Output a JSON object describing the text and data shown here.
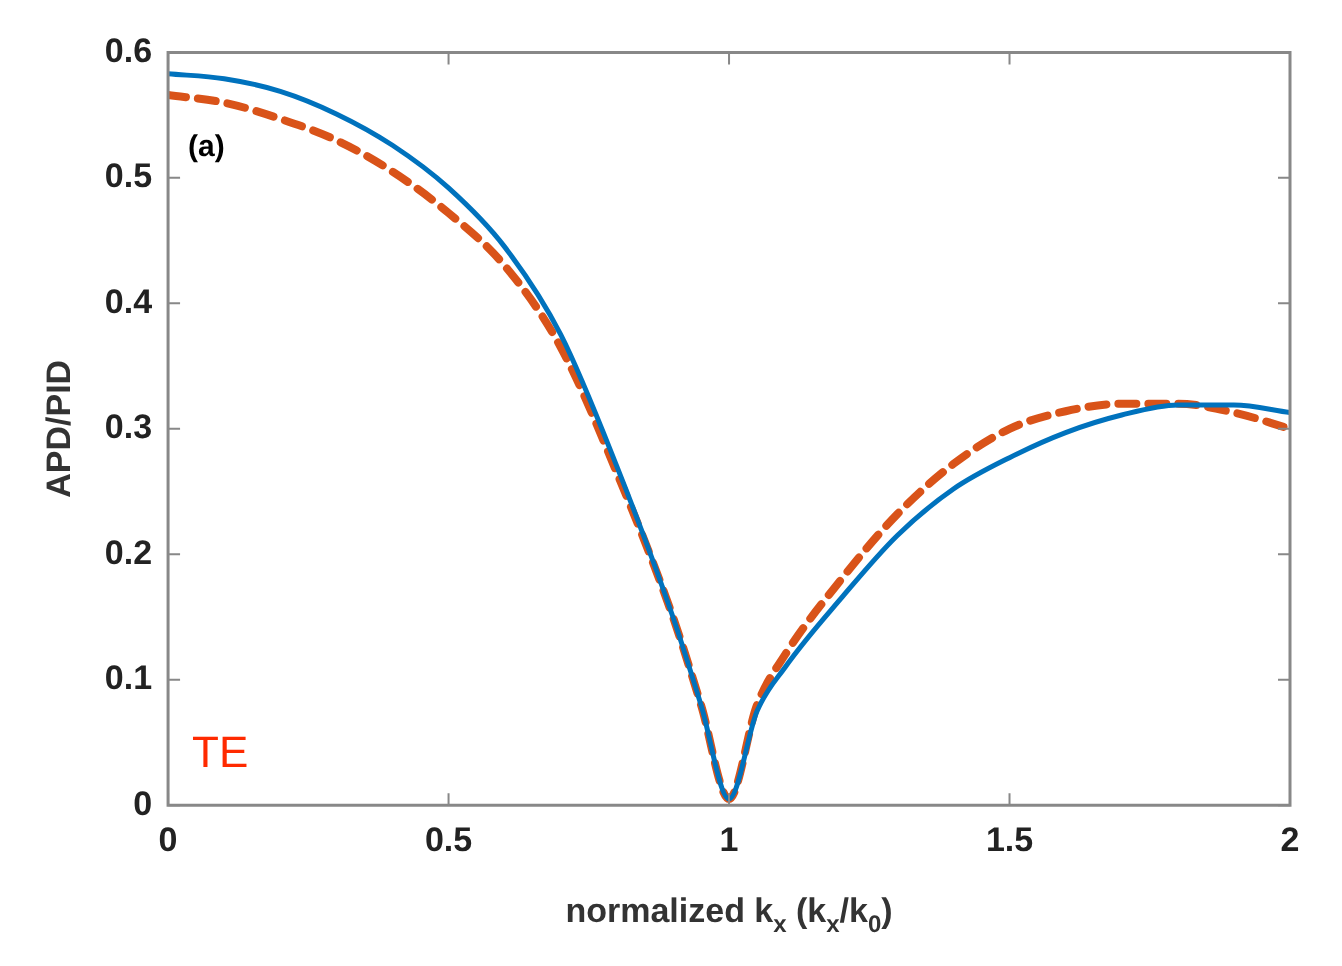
{
  "chart_data": {
    "type": "line",
    "xlabel": "normalized k$_{x}$ (k$_{x}$/k$_{0}$)",
    "ylabel": "APD/PID",
    "x": [
      0,
      0.1,
      0.2,
      0.3,
      0.4,
      0.5,
      0.6,
      0.7,
      0.8,
      0.9,
      0.95,
      1,
      1.05,
      1.1,
      1.2,
      1.3,
      1.4,
      1.5,
      1.6,
      1.7,
      1.8,
      1.9,
      2
    ],
    "series": [
      {
        "color": "#0072bd",
        "line_style": "solid",
        "values": [
          0.583,
          0.579,
          0.569,
          0.551,
          0.526,
          0.492,
          0.445,
          0.375,
          0.27,
          0.15,
          0.08,
          0.005,
          0.075,
          0.11,
          0.165,
          0.215,
          0.252,
          0.277,
          0.297,
          0.311,
          0.319,
          0.319,
          0.313
        ]
      },
      {
        "color": "#d95319",
        "line_style": "dashed",
        "values": [
          0.566,
          0.56,
          0.547,
          0.53,
          0.505,
          0.472,
          0.43,
          0.365,
          0.265,
          0.15,
          0.08,
          0.005,
          0.08,
          0.12,
          0.18,
          0.232,
          0.272,
          0.3,
          0.314,
          0.32,
          0.32,
          0.313,
          0.3
        ]
      }
    ],
    "xlim": [
      0,
      2
    ],
    "xticks": [
      0,
      0.5,
      1,
      1.5,
      2
    ],
    "ylim": [
      0,
      0.6
    ],
    "yticks": [
      0,
      0.1,
      0.2,
      0.3,
      0.4,
      0.5,
      0.6
    ],
    "grid": false,
    "legend": false,
    "marker": "none",
    "annotations": [
      "(a)",
      "TE"
    ]
  }
}
